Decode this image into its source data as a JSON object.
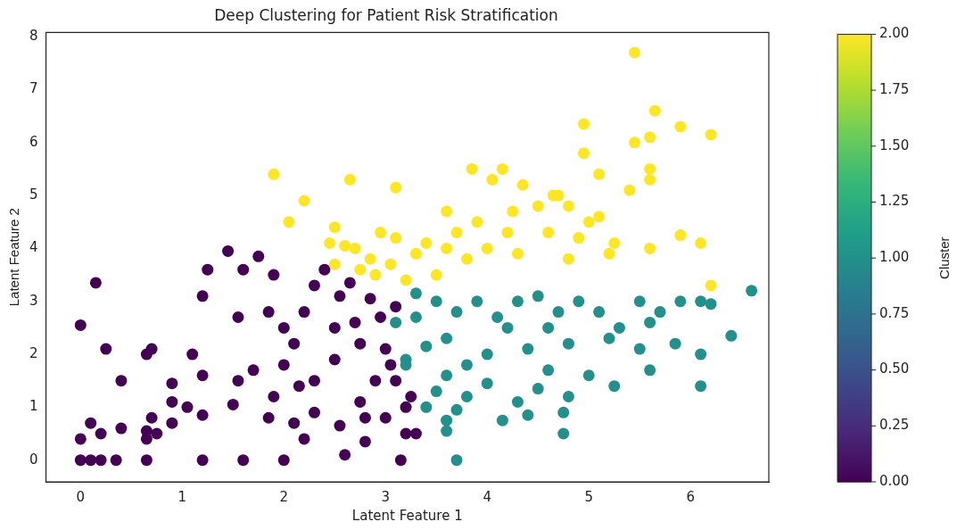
{
  "chart_data": {
    "type": "scatter",
    "title": "Deep Clustering for Patient Risk Stratification",
    "xlabel": "Latent Feature 1",
    "ylabel": "Latent Feature 2",
    "clabel": "Cluster",
    "xlim": [
      -0.34,
      6.77
    ],
    "ylim": [
      -0.41,
      8.08
    ],
    "xticks": [
      0,
      1,
      2,
      3,
      4,
      5,
      6
    ],
    "yticks": [
      0,
      1,
      2,
      3,
      4,
      5,
      6,
      7,
      8
    ],
    "clim": [
      0,
      2
    ],
    "cticks": [
      {
        "value": 0,
        "label": "0.00"
      },
      {
        "value": 0.25,
        "label": "0.25"
      },
      {
        "value": 0.5,
        "label": "0.50"
      },
      {
        "value": 0.75,
        "label": "0.75"
      },
      {
        "value": 1,
        "label": "1.00"
      },
      {
        "value": 1.25,
        "label": "1.25"
      },
      {
        "value": 1.5,
        "label": "1.50"
      },
      {
        "value": 1.75,
        "label": "1.75"
      },
      {
        "value": 2,
        "label": "2.00"
      }
    ],
    "grid": false,
    "legend": false,
    "marker": "circle",
    "x": [
      0,
      0.1,
      0.2,
      0.35,
      0.65,
      1.2,
      1.6,
      2.0,
      0,
      0.2,
      0.1,
      0.4,
      0.65,
      0.65,
      0.75,
      0.7,
      0.9,
      0,
      0.25,
      0.15,
      0.4,
      0.65,
      0.7,
      0.9,
      0.9,
      1.05,
      1.1,
      1.2,
      1.25,
      1.2,
      1.2,
      1.45,
      1.5,
      1.55,
      1.55,
      1.6,
      1.75,
      1.85,
      1.85,
      1.9,
      1.9,
      2.0,
      2.1,
      2.1,
      2.2,
      2.2,
      2.3,
      2.3,
      2.3,
      2.5,
      2.5,
      2.55,
      2.55,
      2.6,
      2.65,
      2.75,
      2.75,
      2.8,
      2.8,
      2.85,
      2.9,
      3.0,
      3.0,
      3.1,
      3.1,
      3.15,
      3.2,
      3.25,
      3.3,
      2.4,
      2.0,
      2.7,
      1.7,
      2.95,
      3.05,
      3.2,
      2.15,
      3.7,
      4.75,
      3.6,
      3.6,
      3.7,
      4.15,
      4.4,
      4.75,
      3.4,
      3.5,
      3.8,
      4.0,
      4.3,
      4.5,
      4.8,
      5.25,
      6.1,
      3.2,
      3.4,
      3.6,
      3.8,
      4.0,
      4.2,
      4.4,
      4.6,
      4.8,
      5.0,
      5.2,
      5.5,
      5.6,
      5.85,
      6.1,
      6.4,
      3.1,
      3.3,
      3.5,
      3.7,
      3.9,
      4.1,
      4.3,
      4.5,
      4.7,
      4.9,
      5.1,
      5.3,
      5.5,
      5.7,
      5.9,
      6.1,
      6.2,
      6.6,
      3.3,
      5.6,
      3.6,
      4.6,
      3.2,
      1.9,
      2.2,
      2.05,
      2.65,
      2.5,
      2.45,
      2.6,
      2.5,
      2.7,
      2.75,
      2.85,
      2.95,
      2.9,
      3.1,
      3.1,
      3.05,
      3.2,
      3.3,
      3.4,
      3.5,
      3.6,
      3.7,
      3.8,
      3.85,
      3.9,
      4.0,
      4.05,
      4.15,
      4.2,
      4.3,
      4.35,
      4.5,
      4.6,
      4.7,
      4.8,
      4.9,
      4.95,
      4.95,
      5.1,
      5.1,
      5.25,
      5.2,
      5.4,
      5.45,
      5.45,
      5.6,
      5.6,
      5.65,
      5.6,
      5.9,
      5.9,
      6.1,
      6.2,
      6.2,
      5.6,
      4.65,
      3.6,
      4.8,
      5.0,
      4.25
    ],
    "values": [
      0,
      0,
      0,
      0,
      0,
      0,
      0,
      0,
      0.4,
      0.5,
      0.7,
      0.6,
      0.4,
      0.55,
      0.5,
      0.8,
      0.7,
      2.55,
      2.1,
      3.35,
      1.5,
      2.0,
      2.1,
      1.45,
      1.1,
      1.0,
      2.0,
      3.1,
      3.6,
      1.6,
      0.85,
      3.95,
      1.05,
      1.5,
      2.7,
      3.6,
      3.85,
      2.8,
      0.8,
      1.2,
      3.5,
      1.8,
      2.2,
      0.7,
      0.4,
      2.8,
      3.3,
      1.5,
      0.9,
      2.5,
      1.9,
      0.65,
      3.1,
      0.1,
      3.35,
      2.2,
      1.1,
      0.35,
      0.8,
      3.05,
      1.5,
      2.1,
      0.8,
      2.9,
      1.5,
      0,
      0.5,
      1.2,
      0.5,
      3.6,
      2.5,
      2.6,
      1.7,
      2.7,
      1.8,
      1.0,
      1.4,
      0,
      0.5,
      0.55,
      0.75,
      0.95,
      0.75,
      0.85,
      0.9,
      1.0,
      1.3,
      1.2,
      1.45,
      1.1,
      1.35,
      1.2,
      1.4,
      1.4,
      1.9,
      2.15,
      2.3,
      1.8,
      2.0,
      2.5,
      2.1,
      1.7,
      2.2,
      1.6,
      2.3,
      2.1,
      1.7,
      2.2,
      2.0,
      2.35,
      2.6,
      2.7,
      3.0,
      2.8,
      3.0,
      2.7,
      3.0,
      3.1,
      2.8,
      3.0,
      2.8,
      2.5,
      3.0,
      2.8,
      3.0,
      3.0,
      2.95,
      3.2,
      3.15,
      2.6,
      1.6,
      2.5,
      1.8,
      5.4,
      4.9,
      4.5,
      5.3,
      4.4,
      4.1,
      4.05,
      3.7,
      4.0,
      3.6,
      3.8,
      4.3,
      3.5,
      5.15,
      4.2,
      3.7,
      3.4,
      3.9,
      4.1,
      3.5,
      4.7,
      4.3,
      3.8,
      5.5,
      4.5,
      4.0,
      5.3,
      5.5,
      4.3,
      3.9,
      5.2,
      4.8,
      4.3,
      5.0,
      3.8,
      4.2,
      5.8,
      6.35,
      5.4,
      4.6,
      4.1,
      3.9,
      5.1,
      6.0,
      7.7,
      5.5,
      6.1,
      6.6,
      4.0,
      6.3,
      4.25,
      4.1,
      6.15,
      3.3,
      5.3,
      5.0,
      4.0,
      4.8,
      4.5,
      4.7
    ],
    "cvalues": [
      0,
      0,
      0,
      0,
      0,
      0,
      0,
      0,
      0,
      0,
      0,
      0,
      0,
      0,
      0,
      0,
      0,
      0,
      0,
      0,
      0,
      0,
      0,
      0,
      0,
      0,
      0,
      0,
      0,
      0,
      0,
      0,
      0,
      0,
      0,
      0,
      0,
      0,
      0,
      0,
      0,
      0,
      0,
      0,
      0,
      0,
      0,
      0,
      0,
      0,
      0,
      0,
      0,
      0,
      0,
      0,
      0,
      0,
      0,
      0,
      0,
      0,
      0,
      0,
      0,
      0,
      0,
      0,
      0,
      0,
      0,
      0,
      0,
      0,
      0,
      0,
      0,
      1,
      1,
      1,
      1,
      1,
      1,
      1,
      1,
      1,
      1,
      1,
      1,
      1,
      1,
      1,
      1,
      1,
      1,
      1,
      1,
      1,
      1,
      1,
      1,
      1,
      1,
      1,
      1,
      1,
      1,
      1,
      1,
      1,
      1,
      1,
      1,
      1,
      1,
      1,
      1,
      1,
      1,
      1,
      1,
      1,
      1,
      1,
      1,
      1,
      1,
      1,
      1,
      1,
      1,
      1,
      1,
      2,
      2,
      2,
      2,
      2,
      2,
      2,
      2,
      2,
      2,
      2,
      2,
      2,
      2,
      2,
      2,
      2,
      2,
      2,
      2,
      2,
      2,
      2,
      2,
      2,
      2,
      2,
      2,
      2,
      2,
      2,
      2,
      2,
      2,
      2,
      2,
      2,
      2,
      2,
      2,
      2,
      2,
      2,
      2,
      2,
      2,
      2,
      2,
      2,
      2,
      2,
      2,
      2,
      2,
      2,
      2,
      2,
      2,
      2,
      2
    ]
  }
}
